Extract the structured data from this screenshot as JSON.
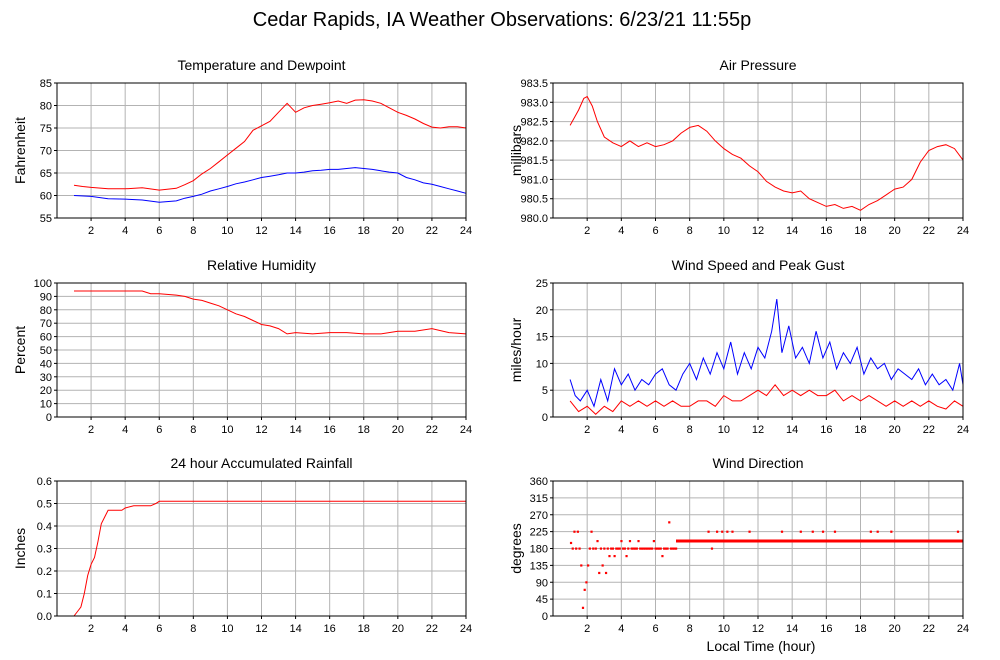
{
  "title": "Cedar Rapids, IA Weather Observations: 6/23/21 11:55p",
  "xlabel": "Local Time (hour)",
  "colors": {
    "red": "#ff0000",
    "blue": "#0000ff",
    "grid": "#b3b3b3"
  },
  "chart_data": [
    {
      "type": "line",
      "title": "Temperature and Dewpoint",
      "ylabel": "Fahrenheit",
      "xlim": [
        0,
        24
      ],
      "ylim": [
        55,
        85
      ],
      "grid": true,
      "xticks": [
        2,
        4,
        6,
        8,
        10,
        12,
        14,
        16,
        18,
        20,
        22,
        24
      ],
      "yticks": [
        55,
        60,
        65,
        70,
        75,
        80,
        85
      ],
      "series": [
        {
          "color": "#ff0000",
          "x": [
            1,
            1.5,
            2,
            3,
            4,
            5,
            6,
            7,
            7.5,
            8,
            8.5,
            9,
            9.5,
            10,
            10.5,
            11,
            11.5,
            12,
            12.5,
            13,
            13.5,
            14,
            14.5,
            15,
            15.5,
            16,
            16.5,
            17,
            17.5,
            18,
            18.5,
            19,
            19.5,
            20,
            20.5,
            21,
            21.5,
            22,
            22.5,
            23,
            23.5,
            24
          ],
          "y": [
            62.3,
            62.0,
            61.8,
            61.5,
            61.5,
            61.7,
            61.2,
            61.6,
            62.4,
            63.3,
            64.8,
            66.0,
            67.5,
            69.0,
            70.5,
            72.0,
            74.5,
            75.5,
            76.5,
            78.5,
            80.5,
            78.5,
            79.5,
            80.0,
            80.3,
            80.6,
            81.0,
            80.5,
            81.2,
            81.3,
            81.0,
            80.5,
            79.5,
            78.5,
            77.8,
            77.0,
            76.0,
            75.2,
            75.0,
            75.3,
            75.3,
            75.0
          ]
        },
        {
          "color": "#0000ff",
          "x": [
            1,
            2,
            3,
            4,
            5,
            6,
            7,
            7.5,
            8,
            8.5,
            9,
            9.5,
            10,
            10.5,
            11,
            11.5,
            12,
            12.5,
            13,
            13.5,
            14,
            14.5,
            15,
            15.5,
            16,
            16.5,
            17,
            17.5,
            18,
            18.5,
            19,
            19.5,
            20,
            20.5,
            21,
            21.5,
            22,
            22.5,
            23,
            23.5,
            24
          ],
          "y": [
            60.0,
            59.8,
            59.3,
            59.2,
            59.0,
            58.5,
            58.8,
            59.4,
            59.8,
            60.3,
            61.0,
            61.5,
            62.0,
            62.6,
            63.0,
            63.5,
            64.0,
            64.3,
            64.6,
            65.0,
            65.0,
            65.2,
            65.5,
            65.6,
            65.8,
            65.8,
            66.0,
            66.2,
            66.0,
            65.8,
            65.5,
            65.2,
            65.0,
            64.0,
            63.5,
            62.8,
            62.5,
            62.0,
            61.5,
            61.0,
            60.5
          ]
        }
      ]
    },
    {
      "type": "line",
      "title": "Air Pressure",
      "ylabel": "millibars",
      "xlim": [
        0,
        24
      ],
      "ylim": [
        980.0,
        983.5
      ],
      "grid": true,
      "xticks": [
        2,
        4,
        6,
        8,
        10,
        12,
        14,
        16,
        18,
        20,
        22,
        24
      ],
      "yticks": [
        "980.0",
        "980.5",
        "981.0",
        "981.5",
        "982.0",
        "982.5",
        "983.0",
        "983.5"
      ],
      "series": [
        {
          "color": "#ff0000",
          "x": [
            1,
            1.5,
            1.8,
            2,
            2.3,
            2.6,
            3,
            3.5,
            4,
            4.5,
            5,
            5.5,
            6,
            6.5,
            7,
            7.5,
            8,
            8.5,
            9,
            9.5,
            10,
            10.5,
            11,
            11.5,
            12,
            12.5,
            13,
            13.5,
            14,
            14.5,
            15,
            15.5,
            16,
            16.5,
            17,
            17.5,
            18,
            18.5,
            19,
            19.5,
            20,
            20.5,
            21,
            21.5,
            22,
            22.5,
            23,
            23.5,
            24
          ],
          "y": [
            982.4,
            982.8,
            983.1,
            983.15,
            982.9,
            982.5,
            982.1,
            981.95,
            981.85,
            982.0,
            981.85,
            981.95,
            981.85,
            981.9,
            982.0,
            982.2,
            982.35,
            982.4,
            982.25,
            982.0,
            981.8,
            981.65,
            981.55,
            981.35,
            981.2,
            980.95,
            980.8,
            980.7,
            980.65,
            980.7,
            980.5,
            980.4,
            980.3,
            980.35,
            980.25,
            980.3,
            980.2,
            980.35,
            980.45,
            980.6,
            980.75,
            980.8,
            981.0,
            981.45,
            981.75,
            981.85,
            981.9,
            981.8,
            981.5
          ]
        }
      ]
    },
    {
      "type": "line",
      "title": "Relative Humidity",
      "ylabel": "Percent",
      "xlim": [
        0,
        24
      ],
      "ylim": [
        0,
        100
      ],
      "grid": true,
      "xticks": [
        2,
        4,
        6,
        8,
        10,
        12,
        14,
        16,
        18,
        20,
        22,
        24
      ],
      "yticks": [
        0,
        10,
        20,
        30,
        40,
        50,
        60,
        70,
        80,
        90,
        100
      ],
      "series": [
        {
          "color": "#ff0000",
          "x": [
            1,
            2,
            3,
            4,
            5,
            5.5,
            6,
            7,
            7.5,
            8,
            8.5,
            9,
            9.5,
            10,
            10.5,
            11,
            11.5,
            12,
            12.5,
            13,
            13.5,
            14,
            15,
            16,
            17,
            18,
            19,
            20,
            21,
            22,
            23,
            24
          ],
          "y": [
            94,
            94,
            94,
            94,
            94,
            92,
            92,
            91,
            90,
            88,
            87,
            85,
            83,
            80,
            77,
            75,
            72,
            69,
            68,
            66,
            62,
            63,
            62,
            63,
            63,
            62,
            62,
            64,
            64,
            66,
            63,
            62
          ]
        }
      ]
    },
    {
      "type": "line",
      "title": "Wind Speed and Peak Gust",
      "ylabel": "miles/hour",
      "xlim": [
        0,
        24
      ],
      "ylim": [
        0,
        25
      ],
      "grid": true,
      "xticks": [
        2,
        4,
        6,
        8,
        10,
        12,
        14,
        16,
        18,
        20,
        22,
        24
      ],
      "yticks": [
        0,
        5,
        10,
        15,
        20,
        25
      ],
      "series": [
        {
          "color": "#0000ff",
          "x": [
            1,
            1.3,
            1.6,
            2,
            2.4,
            2.8,
            3.2,
            3.6,
            4,
            4.4,
            4.8,
            5.2,
            5.6,
            6,
            6.4,
            6.8,
            7.2,
            7.6,
            8,
            8.4,
            8.8,
            9.2,
            9.6,
            10,
            10.4,
            10.8,
            11.2,
            11.6,
            12,
            12.4,
            12.8,
            13.1,
            13.4,
            13.8,
            14.2,
            14.6,
            15,
            15.4,
            15.8,
            16.2,
            16.6,
            17,
            17.4,
            17.8,
            18.2,
            18.6,
            19,
            19.4,
            19.8,
            20.2,
            20.6,
            21,
            21.4,
            21.8,
            22.2,
            22.6,
            23,
            23.4,
            23.8,
            24
          ],
          "y": [
            7,
            4,
            3,
            5,
            2,
            7,
            3,
            9,
            6,
            8,
            5,
            7,
            6,
            8,
            9,
            6,
            5,
            8,
            10,
            7,
            11,
            8,
            12,
            9,
            14,
            8,
            12,
            9,
            13,
            11,
            16,
            22,
            12,
            17,
            11,
            13,
            10,
            16,
            11,
            14,
            9,
            12,
            10,
            13,
            8,
            11,
            9,
            10,
            7,
            9,
            8,
            7,
            9,
            6,
            8,
            6,
            7,
            5,
            10,
            6
          ]
        },
        {
          "color": "#ff0000",
          "x": [
            1,
            1.5,
            2,
            2.5,
            3,
            3.5,
            4,
            4.5,
            5,
            5.5,
            6,
            6.5,
            7,
            7.5,
            8,
            8.5,
            9,
            9.5,
            10,
            10.5,
            11,
            11.5,
            12,
            12.5,
            13,
            13.5,
            14,
            14.5,
            15,
            15.5,
            16,
            16.5,
            17,
            17.5,
            18,
            18.5,
            19,
            19.5,
            20,
            20.5,
            21,
            21.5,
            22,
            22.5,
            23,
            23.5,
            24
          ],
          "y": [
            3,
            1,
            2,
            0.5,
            2,
            1,
            3,
            2,
            3,
            2,
            3,
            2,
            3,
            2,
            2,
            3,
            3,
            2,
            4,
            3,
            3,
            4,
            5,
            4,
            6,
            4,
            5,
            4,
            5,
            4,
            4,
            5,
            3,
            4,
            3,
            4,
            3,
            2,
            3,
            2,
            3,
            2,
            3,
            2,
            1.5,
            3,
            2
          ]
        }
      ]
    },
    {
      "type": "line",
      "title": "24 hour Accumulated Rainfall",
      "ylabel": "Inches",
      "xlim": [
        0,
        24
      ],
      "ylim": [
        0,
        0.6
      ],
      "grid": true,
      "xticks": [
        2,
        4,
        6,
        8,
        10,
        12,
        14,
        16,
        18,
        20,
        22,
        24
      ],
      "yticks": [
        "0.0",
        "0.1",
        "0.2",
        "0.3",
        "0.4",
        "0.5",
        "0.6"
      ],
      "series": [
        {
          "color": "#ff0000",
          "x": [
            1,
            1.2,
            1.4,
            1.6,
            1.8,
            2,
            2.2,
            2.4,
            2.6,
            2.8,
            3,
            3.2,
            3.5,
            3.8,
            4,
            4.5,
            5,
            5.5,
            5.8,
            6,
            8,
            10,
            12,
            14,
            16,
            18,
            20,
            22,
            24
          ],
          "y": [
            0.0,
            0.02,
            0.04,
            0.1,
            0.18,
            0.23,
            0.26,
            0.33,
            0.41,
            0.44,
            0.47,
            0.47,
            0.47,
            0.47,
            0.48,
            0.49,
            0.49,
            0.49,
            0.5,
            0.51,
            0.51,
            0.51,
            0.51,
            0.51,
            0.51,
            0.51,
            0.51,
            0.51,
            0.51
          ]
        }
      ]
    },
    {
      "type": "scatter",
      "title": "Wind Direction",
      "ylabel": "degrees",
      "xlabel": "Local Time (hour)",
      "xlim": [
        0,
        24
      ],
      "ylim": [
        0,
        360
      ],
      "grid": true,
      "xticks": [
        2,
        4,
        6,
        8,
        10,
        12,
        14,
        16,
        18,
        20,
        22,
        24
      ],
      "yticks": [
        0,
        45,
        90,
        135,
        180,
        225,
        270,
        315,
        360
      ],
      "series": [
        {
          "color": "#ff0000",
          "x": [
            1.05,
            1.15,
            1.25,
            1.35,
            1.45,
            1.55,
            1.65,
            1.75,
            1.85,
            1.95,
            2.05,
            2.15,
            2.25,
            2.35,
            2.5,
            2.6,
            2.7,
            2.8,
            2.9,
            3,
            3.1,
            3.2,
            3.3,
            3.4,
            3.5,
            3.6,
            3.7,
            3.8,
            3.9,
            4,
            4.1,
            4.2,
            4.3,
            4.4,
            4.5,
            4.6,
            4.7,
            4.8,
            4.9,
            5,
            5.1,
            5.2,
            5.3,
            5.4,
            5.5,
            5.6,
            5.7,
            5.8,
            5.9,
            6,
            6.1,
            6.2,
            6.3,
            6.4,
            6.5,
            6.6,
            6.7,
            6.8,
            6.9,
            7,
            7.1,
            7.2,
            9.1,
            9.3,
            9.6,
            9.9,
            10.2,
            10.5,
            11.5,
            13.4,
            14.5,
            15.2,
            15.8,
            16.5,
            18.6,
            19,
            19.8,
            23.7
          ],
          "y": [
            195,
            180,
            225,
            180,
            225,
            180,
            135,
            22,
            70,
            90,
            135,
            180,
            225,
            180,
            180,
            200,
            115,
            180,
            135,
            180,
            115,
            180,
            160,
            180,
            180,
            160,
            180,
            180,
            180,
            200,
            180,
            180,
            160,
            180,
            200,
            180,
            180,
            180,
            180,
            200,
            180,
            180,
            180,
            180,
            180,
            180,
            180,
            180,
            200,
            180,
            180,
            180,
            180,
            160,
            180,
            180,
            180,
            250,
            180,
            180,
            180,
            180,
            225,
            180,
            225,
            225,
            225,
            225,
            225,
            225,
            225,
            225,
            225,
            225,
            225,
            225,
            225,
            225
          ]
        },
        {
          "color": "#ff0000",
          "role": "steady",
          "x": [
            7.2,
            24
          ],
          "y": [
            200,
            200
          ]
        }
      ]
    }
  ]
}
